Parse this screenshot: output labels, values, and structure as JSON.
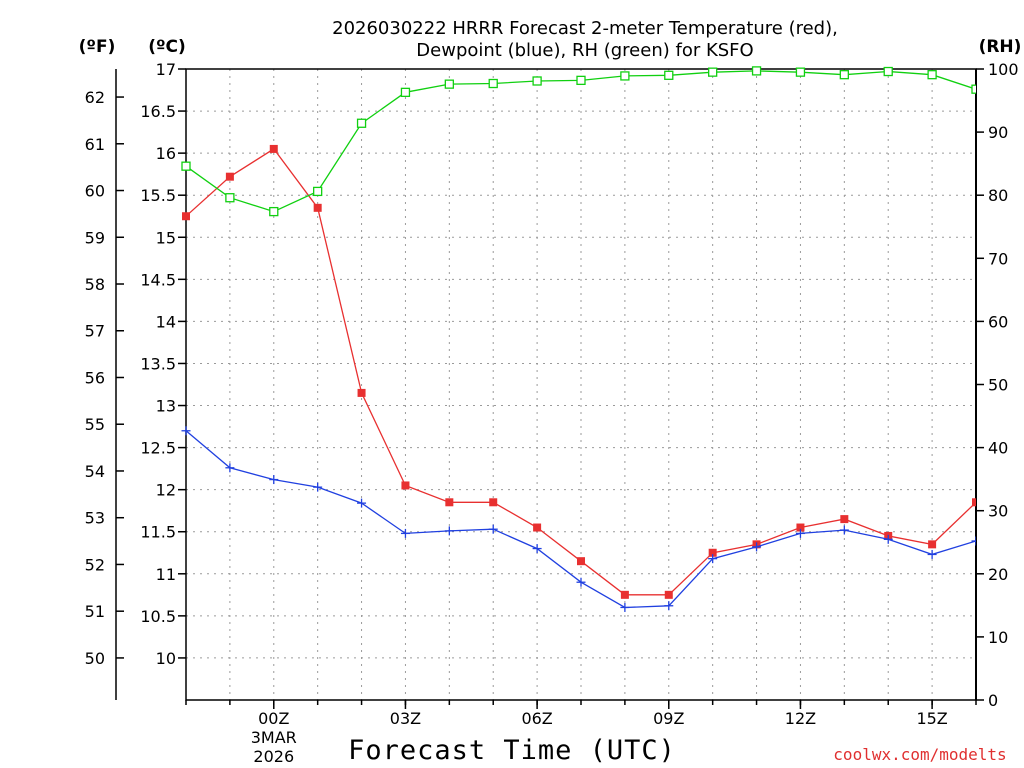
{
  "chart_data": {
    "type": "line",
    "title_line1": "2026030222 HRRR Forecast 2-meter Temperature (red),",
    "title_line2": "Dewpoint (blue), RH (green) for KSFO",
    "xlabel": "Forecast Time (UTC)",
    "credit": "coolwx.com/modelts",
    "units": {
      "fahrenheit": "(ºF)",
      "celsius": "(ºC)",
      "rh": "(RH)"
    },
    "x": [
      -2,
      -1,
      0,
      1,
      2,
      3,
      4,
      5,
      6,
      7,
      8,
      9,
      10,
      11,
      12,
      13,
      14,
      15,
      16
    ],
    "xlim": [
      -2,
      16
    ],
    "x_ticks": [
      {
        "hour": 0,
        "label": "00Z",
        "sub1": "3MAR",
        "sub2": "2026"
      },
      {
        "hour": 3,
        "label": "03Z"
      },
      {
        "hour": 6,
        "label": "06Z"
      },
      {
        "hour": 9,
        "label": "09Z"
      },
      {
        "hour": 12,
        "label": "12Z"
      },
      {
        "hour": 15,
        "label": "15Z"
      }
    ],
    "ylim_celsius": [
      9.5,
      17
    ],
    "celsius_ticks": [
      "10",
      "10.5",
      "11",
      "11.5",
      "12",
      "12.5",
      "13",
      "13.5",
      "14",
      "14.5",
      "15",
      "15.5",
      "16",
      "16.5",
      "17"
    ],
    "fahrenheit_ticks": [
      "50",
      "51",
      "52",
      "53",
      "54",
      "55",
      "56",
      "57",
      "58",
      "59",
      "60",
      "61",
      "62"
    ],
    "ylim_rh": [
      0,
      100
    ],
    "rh_ticks": [
      "0",
      "10",
      "20",
      "30",
      "40",
      "50",
      "60",
      "70",
      "80",
      "90",
      "100"
    ],
    "series": [
      {
        "name": "Temperature",
        "axis": "celsius",
        "color": "#e83030",
        "marker": "filled-square",
        "values": [
          15.25,
          15.72,
          16.05,
          15.35,
          13.15,
          12.05,
          11.85,
          11.85,
          11.55,
          11.15,
          10.75,
          10.75,
          11.25,
          11.35,
          11.55,
          11.65,
          11.45,
          11.35,
          11.85
        ]
      },
      {
        "name": "Dewpoint",
        "axis": "celsius",
        "color": "#2040e0",
        "marker": "plus",
        "values": [
          12.7,
          12.26,
          12.12,
          12.03,
          11.84,
          11.48,
          11.51,
          11.53,
          11.3,
          10.9,
          10.6,
          10.62,
          11.18,
          11.32,
          11.48,
          11.52,
          11.41,
          11.23,
          11.39
        ]
      },
      {
        "name": "RH",
        "axis": "rh",
        "color": "#10d010",
        "marker": "open-square",
        "values": [
          84.6,
          79.6,
          77.4,
          80.6,
          91.4,
          96.3,
          97.6,
          97.7,
          98.1,
          98.2,
          98.9,
          99.0,
          99.5,
          99.7,
          99.5,
          99.1,
          99.6,
          99.1,
          96.8
        ]
      }
    ]
  }
}
